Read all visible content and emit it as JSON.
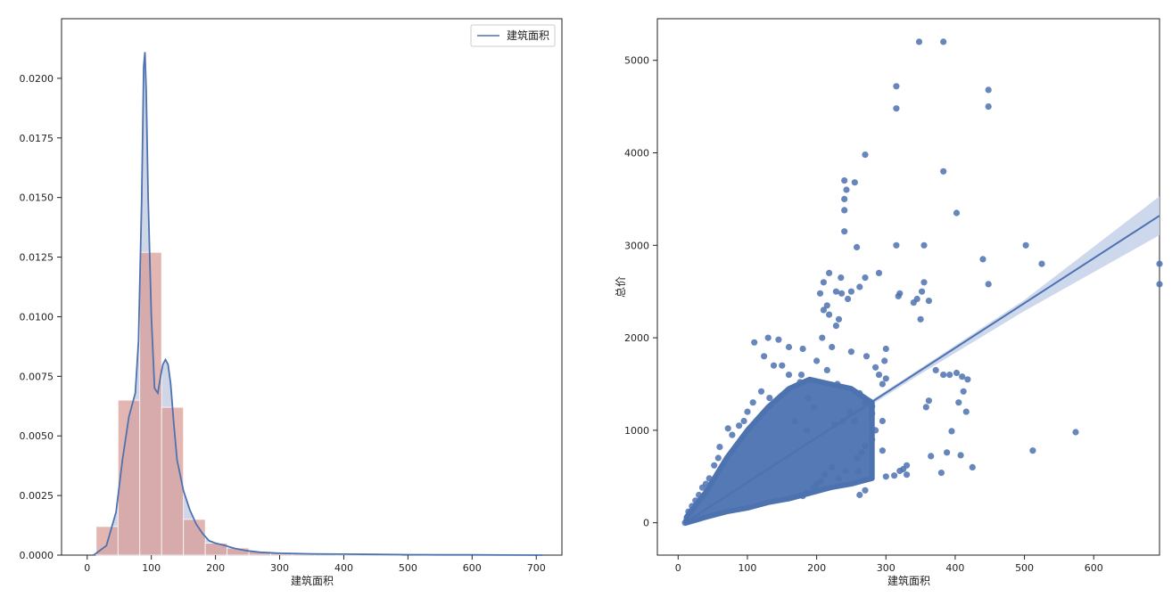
{
  "colors": {
    "hist_fill": "#dd8452",
    "hist_face": "#d99a94",
    "kde_line": "#4c72b0",
    "kde_fill": "#c7cfe4",
    "scatter": "#4c72b0",
    "ci_band": "#c9d4ea"
  },
  "chart_data": [
    {
      "type": "bar",
      "subtype": "histogram-with-kde",
      "xlabel": "建筑面积",
      "ylabel": "",
      "xlim": [
        -40,
        740
      ],
      "ylim": [
        0,
        0.0225
      ],
      "x_ticks": [
        0,
        100,
        200,
        300,
        400,
        500,
        600,
        700
      ],
      "y_ticks": [
        0.0,
        0.0025,
        0.005,
        0.0075,
        0.01,
        0.0125,
        0.015,
        0.0175,
        0.02
      ],
      "y_tick_labels": [
        "0.0000",
        "0.0025",
        "0.0050",
        "0.0075",
        "0.0100",
        "0.0125",
        "0.0150",
        "0.0175",
        "0.0200"
      ],
      "legend": {
        "position": "top-right",
        "entries": [
          "建筑面积"
        ]
      },
      "bins": [
        {
          "x0": 14,
          "x1": 48,
          "value": 0.0012
        },
        {
          "x0": 48,
          "x1": 82,
          "value": 0.0065
        },
        {
          "x0": 82,
          "x1": 116,
          "value": 0.0127
        },
        {
          "x0": 116,
          "x1": 150,
          "value": 0.0062
        },
        {
          "x0": 150,
          "x1": 184,
          "value": 0.0015
        },
        {
          "x0": 184,
          "x1": 218,
          "value": 0.0005
        },
        {
          "x0": 218,
          "x1": 252,
          "value": 0.0003
        },
        {
          "x0": 252,
          "x1": 286,
          "value": 0.00015
        },
        {
          "x0": 286,
          "x1": 320,
          "value": 0.0001
        },
        {
          "x0": 320,
          "x1": 354,
          "value": 6e-05
        },
        {
          "x0": 354,
          "x1": 388,
          "value": 4e-05
        },
        {
          "x0": 388,
          "x1": 422,
          "value": 3e-05
        },
        {
          "x0": 422,
          "x1": 456,
          "value": 2e-05
        },
        {
          "x0": 456,
          "x1": 490,
          "value": 1e-05
        }
      ],
      "kde": {
        "name": "建筑面积",
        "x": [
          10,
          30,
          45,
          55,
          65,
          75,
          80,
          85,
          88,
          90,
          92,
          95,
          100,
          105,
          110,
          115,
          118,
          122,
          126,
          130,
          135,
          140,
          150,
          160,
          170,
          180,
          190,
          200,
          215,
          230,
          250,
          270,
          300,
          350,
          400,
          450,
          500,
          550,
          600,
          650,
          700,
          710
        ],
        "y": [
          0.0,
          0.0004,
          0.0018,
          0.004,
          0.0058,
          0.0068,
          0.009,
          0.015,
          0.0205,
          0.0211,
          0.0195,
          0.015,
          0.01,
          0.007,
          0.0068,
          0.0076,
          0.008,
          0.0082,
          0.008,
          0.0072,
          0.0055,
          0.004,
          0.0027,
          0.0019,
          0.0013,
          0.0009,
          0.0006,
          0.0005,
          0.0004,
          0.00028,
          0.00018,
          0.00012,
          8e-05,
          5e-05,
          4e-05,
          3e-05,
          2e-05,
          1e-05,
          1e-05,
          5e-06,
          0.0,
          0.0
        ]
      }
    },
    {
      "type": "scatter",
      "subtype": "regression-plot",
      "xlabel": "建筑面积",
      "ylabel": "总价",
      "xlim": [
        -30,
        695
      ],
      "ylim": [
        -350,
        5450
      ],
      "x_ticks": [
        0,
        100,
        200,
        300,
        400,
        500,
        600
      ],
      "y_ticks": [
        0,
        1000,
        2000,
        3000,
        4000,
        5000
      ],
      "regression": {
        "x0": 10,
        "y0": 0,
        "x1": 695,
        "y1": 3320
      },
      "ci_band": {
        "x": [
          10,
          200,
          350,
          500,
          695
        ],
        "low": [
          -20,
          900,
          1610,
          2290,
          3110
        ],
        "high": [
          20,
          940,
          1670,
          2410,
          3530
        ]
      },
      "dense_cloud": {
        "x": [
          12,
          40,
          70,
          100,
          130,
          160,
          190,
          220,
          250,
          280
        ],
        "low": [
          0,
          60,
          120,
          160,
          220,
          260,
          320,
          380,
          420,
          480
        ],
        "high": [
          60,
          330,
          700,
          1000,
          1250,
          1450,
          1550,
          1500,
          1450,
          1300
        ]
      },
      "points": [
        [
          348,
          5200
        ],
        [
          383,
          5200
        ],
        [
          315,
          4720
        ],
        [
          448,
          4680
        ],
        [
          315,
          4480
        ],
        [
          448,
          4500
        ],
        [
          270,
          3980
        ],
        [
          383,
          3800
        ],
        [
          240,
          3700
        ],
        [
          255,
          3680
        ],
        [
          243,
          3600
        ],
        [
          402,
          3350
        ],
        [
          240,
          3500
        ],
        [
          240,
          3380
        ],
        [
          240,
          3150
        ],
        [
          502,
          3000
        ],
        [
          315,
          3000
        ],
        [
          355,
          3000
        ],
        [
          258,
          2980
        ],
        [
          525,
          2800
        ],
        [
          440,
          2850
        ],
        [
          695,
          2800
        ],
        [
          695,
          2580
        ],
        [
          448,
          2580
        ],
        [
          355,
          2600
        ],
        [
          352,
          2500
        ],
        [
          320,
          2480
        ],
        [
          345,
          2420
        ],
        [
          340,
          2380
        ],
        [
          318,
          2450
        ],
        [
          290,
          2700
        ],
        [
          270,
          2650
        ],
        [
          262,
          2550
        ],
        [
          250,
          2500
        ],
        [
          228,
          2500
        ],
        [
          235,
          2650
        ],
        [
          218,
          2700
        ],
        [
          210,
          2600
        ],
        [
          205,
          2480
        ],
        [
          215,
          2350
        ],
        [
          218,
          2250
        ],
        [
          210,
          2300
        ],
        [
          236,
          2480
        ],
        [
          245,
          2420
        ],
        [
          228,
          2130
        ],
        [
          232,
          2200
        ],
        [
          208,
          2000
        ],
        [
          222,
          1900
        ],
        [
          250,
          1850
        ],
        [
          272,
          1800
        ],
        [
          298,
          1750
        ],
        [
          300,
          1880
        ],
        [
          285,
          1680
        ],
        [
          290,
          1600
        ],
        [
          300,
          1560
        ],
        [
          295,
          1500
        ],
        [
          350,
          2200
        ],
        [
          362,
          2400
        ],
        [
          372,
          1650
        ],
        [
          383,
          1600
        ],
        [
          392,
          1600
        ],
        [
          402,
          1620
        ],
        [
          410,
          1580
        ],
        [
          418,
          1550
        ],
        [
          412,
          1420
        ],
        [
          358,
          1250
        ],
        [
          362,
          1320
        ],
        [
          405,
          1300
        ],
        [
          416,
          1200
        ],
        [
          395,
          990
        ],
        [
          408,
          730
        ],
        [
          388,
          760
        ],
        [
          365,
          720
        ],
        [
          380,
          540
        ],
        [
          425,
          600
        ],
        [
          512,
          780
        ],
        [
          574,
          980
        ],
        [
          330,
          620
        ],
        [
          325,
          580
        ],
        [
          320,
          560
        ],
        [
          330,
          520
        ],
        [
          312,
          510
        ],
        [
          300,
          500
        ],
        [
          295,
          780
        ],
        [
          280,
          900
        ],
        [
          285,
          1000
        ],
        [
          270,
          830
        ],
        [
          265,
          760
        ],
        [
          258,
          700
        ],
        [
          260,
          560
        ],
        [
          242,
          560
        ],
        [
          232,
          480
        ],
        [
          222,
          600
        ],
        [
          212,
          520
        ],
        [
          206,
          450
        ],
        [
          200,
          420
        ],
        [
          196,
          380
        ],
        [
          186,
          320
        ],
        [
          180,
          290
        ],
        [
          270,
          350
        ],
        [
          262,
          300
        ],
        [
          248,
          1200
        ],
        [
          238,
          1100
        ],
        [
          226,
          1060
        ],
        [
          196,
          1250
        ],
        [
          188,
          1350
        ],
        [
          176,
          1520
        ],
        [
          160,
          1600
        ],
        [
          150,
          1700
        ],
        [
          138,
          1700
        ],
        [
          124,
          1800
        ],
        [
          110,
          1950
        ],
        [
          130,
          2000
        ],
        [
          145,
          1980
        ],
        [
          160,
          1900
        ],
        [
          180,
          1880
        ],
        [
          200,
          1750
        ],
        [
          215,
          1650
        ],
        [
          230,
          1500
        ],
        [
          262,
          1400
        ],
        [
          270,
          1300
        ],
        [
          280,
          1260
        ],
        [
          280,
          1180
        ],
        [
          295,
          1100
        ],
        [
          255,
          1100
        ],
        [
          186,
          1000
        ],
        [
          168,
          1100
        ],
        [
          178,
          1600
        ],
        [
          132,
          1350
        ],
        [
          120,
          1420
        ],
        [
          108,
          1300
        ],
        [
          100,
          1200
        ],
        [
          88,
          1050
        ],
        [
          95,
          1100
        ],
        [
          78,
          950
        ],
        [
          72,
          1020
        ],
        [
          60,
          820
        ],
        [
          58,
          700
        ],
        [
          52,
          620
        ],
        [
          45,
          480
        ],
        [
          40,
          420
        ],
        [
          35,
          380
        ],
        [
          30,
          300
        ],
        [
          25,
          240
        ],
        [
          20,
          180
        ],
        [
          15,
          120
        ],
        [
          12,
          20
        ],
        [
          10,
          0
        ]
      ]
    }
  ]
}
